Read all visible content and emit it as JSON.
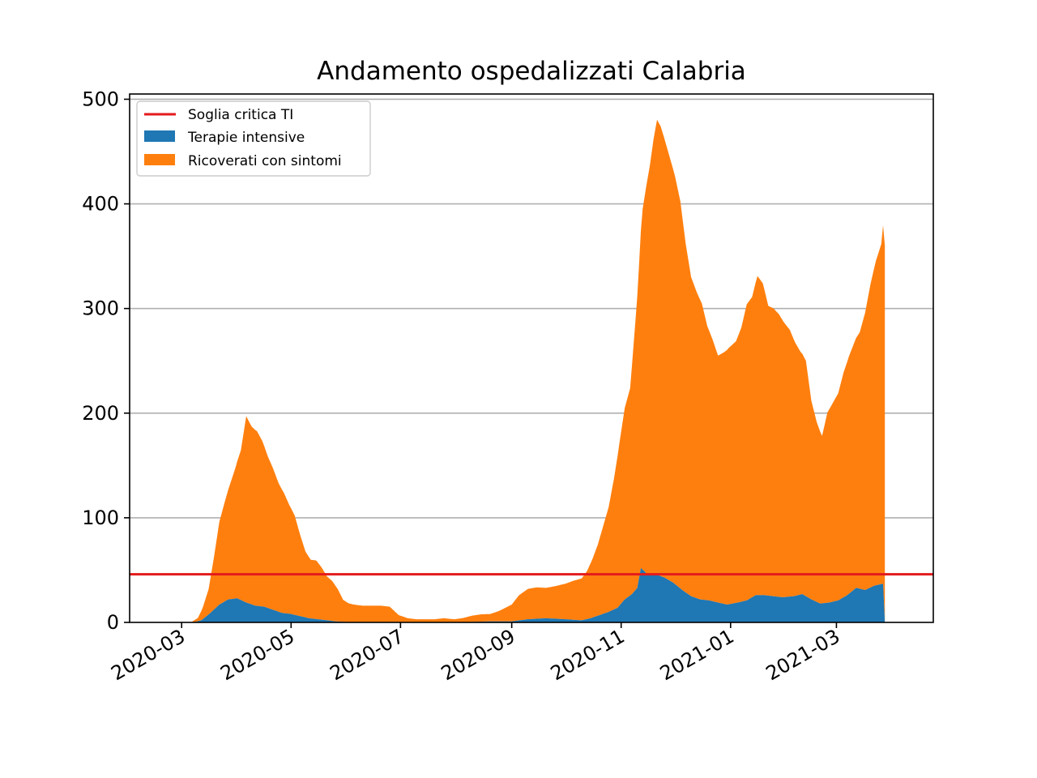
{
  "chart_data": {
    "type": "area",
    "title": "Andamento ospedalizzati Calabria",
    "xlabel": "",
    "ylabel": "",
    "stacked": true,
    "x_range": [
      "2020-02-01",
      "2021-04-24"
    ],
    "ylim": [
      0,
      505
    ],
    "y_ticks": [
      0,
      100,
      200,
      300,
      400,
      500
    ],
    "y_tick_labels": [
      "0",
      "100",
      "200",
      "300",
      "400",
      "500"
    ],
    "x_ticks": [
      "2020-03-01",
      "2020-05-01",
      "2020-07-01",
      "2020-09-01",
      "2020-11-01",
      "2021-01-01",
      "2021-03-01"
    ],
    "x_tick_labels": [
      "2020-03",
      "2020-05",
      "2020-07",
      "2020-09",
      "2020-11",
      "2021-01",
      "2021-03"
    ],
    "grid": "y",
    "legend_position": "top-left",
    "threshold": {
      "name": "Soglia critica TI",
      "value": 46,
      "color": "#e41a1c"
    },
    "series": [
      {
        "name": "Terapie intensive",
        "color": "#1f77b4",
        "points": [
          [
            "2020-03-07",
            0
          ],
          [
            "2020-03-12",
            2
          ],
          [
            "2020-03-17",
            9
          ],
          [
            "2020-03-22",
            17
          ],
          [
            "2020-03-27",
            22
          ],
          [
            "2020-04-01",
            23
          ],
          [
            "2020-04-06",
            19
          ],
          [
            "2020-04-11",
            16
          ],
          [
            "2020-04-16",
            15
          ],
          [
            "2020-04-21",
            12
          ],
          [
            "2020-04-26",
            9
          ],
          [
            "2020-05-01",
            8
          ],
          [
            "2020-05-06",
            6
          ],
          [
            "2020-05-11",
            4
          ],
          [
            "2020-05-16",
            3
          ],
          [
            "2020-05-21",
            2
          ],
          [
            "2020-05-26",
            1
          ],
          [
            "2020-06-05",
            0
          ],
          [
            "2020-08-01",
            0
          ],
          [
            "2020-08-20",
            1
          ],
          [
            "2020-09-01",
            1
          ],
          [
            "2020-09-10",
            3
          ],
          [
            "2020-09-20",
            4
          ],
          [
            "2020-10-01",
            3
          ],
          [
            "2020-10-10",
            2
          ],
          [
            "2020-10-15",
            4
          ],
          [
            "2020-10-20",
            7
          ],
          [
            "2020-10-25",
            10
          ],
          [
            "2020-10-30",
            14
          ],
          [
            "2020-11-03",
            22
          ],
          [
            "2020-11-07",
            27
          ],
          [
            "2020-11-10",
            33
          ],
          [
            "2020-11-12",
            52
          ],
          [
            "2020-11-15",
            47
          ],
          [
            "2020-11-20",
            46
          ],
          [
            "2020-11-25",
            43
          ],
          [
            "2020-11-30",
            38
          ],
          [
            "2020-12-05",
            31
          ],
          [
            "2020-12-10",
            25
          ],
          [
            "2020-12-15",
            22
          ],
          [
            "2020-12-20",
            21
          ],
          [
            "2020-12-25",
            19
          ],
          [
            "2020-12-30",
            17
          ],
          [
            "2021-01-05",
            19
          ],
          [
            "2021-01-10",
            21
          ],
          [
            "2021-01-15",
            26
          ],
          [
            "2021-01-20",
            26
          ],
          [
            "2021-01-25",
            25
          ],
          [
            "2021-01-30",
            24
          ],
          [
            "2021-02-05",
            25
          ],
          [
            "2021-02-10",
            27
          ],
          [
            "2021-02-15",
            22
          ],
          [
            "2021-02-20",
            18
          ],
          [
            "2021-02-25",
            19
          ],
          [
            "2021-03-02",
            21
          ],
          [
            "2021-03-07",
            26
          ],
          [
            "2021-03-12",
            33
          ],
          [
            "2021-03-17",
            31
          ],
          [
            "2021-03-22",
            35
          ],
          [
            "2021-03-27",
            37
          ]
        ]
      },
      {
        "name": "Ricoverati con sintomi",
        "color": "#ff7f0e",
        "points": [
          [
            "2020-03-07",
            1
          ],
          [
            "2020-03-10",
            3
          ],
          [
            "2020-03-13",
            12
          ],
          [
            "2020-03-16",
            24
          ],
          [
            "2020-03-19",
            50
          ],
          [
            "2020-03-22",
            79
          ],
          [
            "2020-03-25",
            95
          ],
          [
            "2020-03-28",
            110
          ],
          [
            "2020-03-31",
            125
          ],
          [
            "2020-04-03",
            143
          ],
          [
            "2020-04-06",
            178
          ],
          [
            "2020-04-09",
            170
          ],
          [
            "2020-04-12",
            167
          ],
          [
            "2020-04-15",
            158
          ],
          [
            "2020-04-18",
            145
          ],
          [
            "2020-04-21",
            135
          ],
          [
            "2020-04-24",
            123
          ],
          [
            "2020-04-27",
            115
          ],
          [
            "2020-04-30",
            104
          ],
          [
            "2020-05-03",
            95
          ],
          [
            "2020-05-06",
            78
          ],
          [
            "2020-05-09",
            63
          ],
          [
            "2020-05-12",
            56
          ],
          [
            "2020-05-15",
            56
          ],
          [
            "2020-05-18",
            50
          ],
          [
            "2020-05-21",
            42
          ],
          [
            "2020-05-24",
            38
          ],
          [
            "2020-05-27",
            31
          ],
          [
            "2020-05-30",
            21
          ],
          [
            "2020-06-02",
            18
          ],
          [
            "2020-06-05",
            17
          ],
          [
            "2020-06-10",
            16
          ],
          [
            "2020-06-15",
            16
          ],
          [
            "2020-06-20",
            16
          ],
          [
            "2020-06-25",
            15
          ],
          [
            "2020-06-30",
            7
          ],
          [
            "2020-07-05",
            4
          ],
          [
            "2020-07-10",
            3
          ],
          [
            "2020-07-15",
            3
          ],
          [
            "2020-07-20",
            3
          ],
          [
            "2020-07-25",
            4
          ],
          [
            "2020-07-31",
            3
          ],
          [
            "2020-08-05",
            4
          ],
          [
            "2020-08-10",
            6
          ],
          [
            "2020-08-15",
            7
          ],
          [
            "2020-08-20",
            7
          ],
          [
            "2020-08-25",
            10
          ],
          [
            "2020-09-01",
            16
          ],
          [
            "2020-09-05",
            24
          ],
          [
            "2020-09-10",
            29
          ],
          [
            "2020-09-15",
            30
          ],
          [
            "2020-09-20",
            29
          ],
          [
            "2020-09-25",
            31
          ],
          [
            "2020-10-01",
            34
          ],
          [
            "2020-10-05",
            37
          ],
          [
            "2020-10-10",
            40
          ],
          [
            "2020-10-13",
            46
          ],
          [
            "2020-10-16",
            56
          ],
          [
            "2020-10-19",
            68
          ],
          [
            "2020-10-22",
            84
          ],
          [
            "2020-10-25",
            100
          ],
          [
            "2020-10-28",
            125
          ],
          [
            "2020-10-31",
            155
          ],
          [
            "2020-11-03",
            183
          ],
          [
            "2020-11-06",
            198
          ],
          [
            "2020-11-09",
            258
          ],
          [
            "2020-11-11",
            300
          ],
          [
            "2020-11-13",
            345
          ],
          [
            "2020-11-15",
            370
          ],
          [
            "2020-11-17",
            390
          ],
          [
            "2020-11-19",
            415
          ],
          [
            "2020-11-21",
            435
          ],
          [
            "2020-11-23",
            430
          ],
          [
            "2020-11-25",
            420
          ],
          [
            "2020-11-28",
            405
          ],
          [
            "2020-12-01",
            390
          ],
          [
            "2020-12-04",
            370
          ],
          [
            "2020-12-07",
            333
          ],
          [
            "2020-12-10",
            305
          ],
          [
            "2020-12-13",
            293
          ],
          [
            "2020-12-16",
            283
          ],
          [
            "2020-12-19",
            262
          ],
          [
            "2020-12-22",
            250
          ],
          [
            "2020-12-25",
            236
          ],
          [
            "2020-12-28",
            240
          ],
          [
            "2020-12-31",
            245
          ],
          [
            "2021-01-04",
            250
          ],
          [
            "2021-01-07",
            262
          ],
          [
            "2021-01-10",
            283
          ],
          [
            "2021-01-13",
            287
          ],
          [
            "2021-01-16",
            305
          ],
          [
            "2021-01-19",
            298
          ],
          [
            "2021-01-22",
            277
          ],
          [
            "2021-01-25",
            275
          ],
          [
            "2021-01-28",
            270
          ],
          [
            "2021-01-31",
            262
          ],
          [
            "2021-02-03",
            255
          ],
          [
            "2021-02-06",
            242
          ],
          [
            "2021-02-09",
            232
          ],
          [
            "2021-02-12",
            225
          ],
          [
            "2021-02-15",
            190
          ],
          [
            "2021-02-18",
            172
          ],
          [
            "2021-02-21",
            160
          ],
          [
            "2021-02-24",
            182
          ],
          [
            "2021-02-27",
            190
          ],
          [
            "2021-03-02",
            198
          ],
          [
            "2021-03-05",
            215
          ],
          [
            "2021-03-08",
            227
          ],
          [
            "2021-03-11",
            236
          ],
          [
            "2021-03-14",
            245
          ],
          [
            "2021-03-17",
            265
          ],
          [
            "2021-03-20",
            290
          ],
          [
            "2021-03-23",
            310
          ],
          [
            "2021-03-26",
            325
          ],
          [
            "2021-03-28",
            360
          ]
        ]
      }
    ]
  }
}
